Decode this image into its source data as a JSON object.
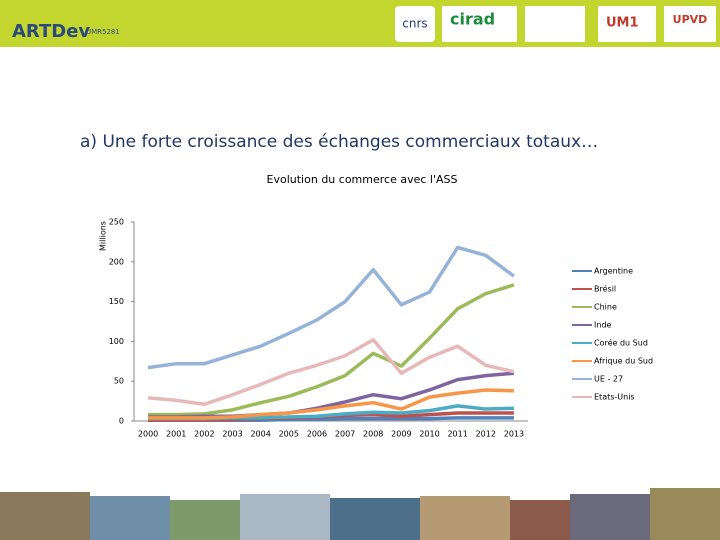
{
  "header": {
    "logos": [
      "ARTDev",
      "UMR5281",
      "cnrs",
      "cirad",
      "UM1",
      "UPVD"
    ]
  },
  "slide_title": "a) Une forte croissance des échanges commerciaux totaux…",
  "chart_data": {
    "type": "line",
    "title": "Evolution du commerce avec l'ASS",
    "y_label": "Millions",
    "categories": [
      "2000",
      "2001",
      "2002",
      "2003",
      "2004",
      "2005",
      "2006",
      "2007",
      "2008",
      "2009",
      "2010",
      "2011",
      "2012",
      "2013"
    ],
    "ylim": [
      0,
      250
    ],
    "yticks": [
      0,
      50,
      100,
      150,
      200,
      250
    ],
    "grid": false,
    "legend": "right",
    "series": [
      {
        "name": "Argentine",
        "color": "#4f81bd",
        "values": [
          1,
          1,
          1,
          1,
          1,
          2,
          2,
          3,
          3,
          3,
          3,
          4,
          4,
          4
        ]
      },
      {
        "name": "Brésil",
        "color": "#c0504d",
        "values": [
          1,
          1,
          1,
          2,
          3,
          4,
          5,
          7,
          8,
          6,
          8,
          10,
          10,
          10
        ]
      },
      {
        "name": "Chine",
        "color": "#9bbb59",
        "values": [
          8,
          8,
          9,
          14,
          23,
          31,
          43,
          57,
          85,
          69,
          104,
          141,
          160,
          171
        ]
      },
      {
        "name": "Inde",
        "color": "#8064a2",
        "values": [
          5,
          5,
          6,
          6,
          8,
          10,
          16,
          24,
          33,
          28,
          39,
          52,
          57,
          60
        ]
      },
      {
        "name": "Corée du Sud",
        "color": "#4bacc6",
        "values": [
          3,
          3,
          3,
          4,
          4,
          5,
          6,
          9,
          11,
          10,
          13,
          19,
          15,
          16
        ]
      },
      {
        "name": "Afrique du Sud",
        "color": "#f79646",
        "values": [
          4,
          4,
          4,
          5,
          8,
          10,
          14,
          19,
          23,
          15,
          30,
          35,
          39,
          38
        ]
      },
      {
        "name": "UE - 27",
        "color": "#95b3d7",
        "values": [
          67,
          72,
          72,
          83,
          94,
          110,
          127,
          150,
          190,
          146,
          162,
          218,
          208,
          182
        ]
      },
      {
        "name": "Etats-Unis",
        "color": "#e6b9b8",
        "values": [
          29,
          26,
          21,
          33,
          46,
          60,
          70,
          82,
          102,
          60,
          80,
          94,
          70,
          62
        ]
      }
    ]
  }
}
